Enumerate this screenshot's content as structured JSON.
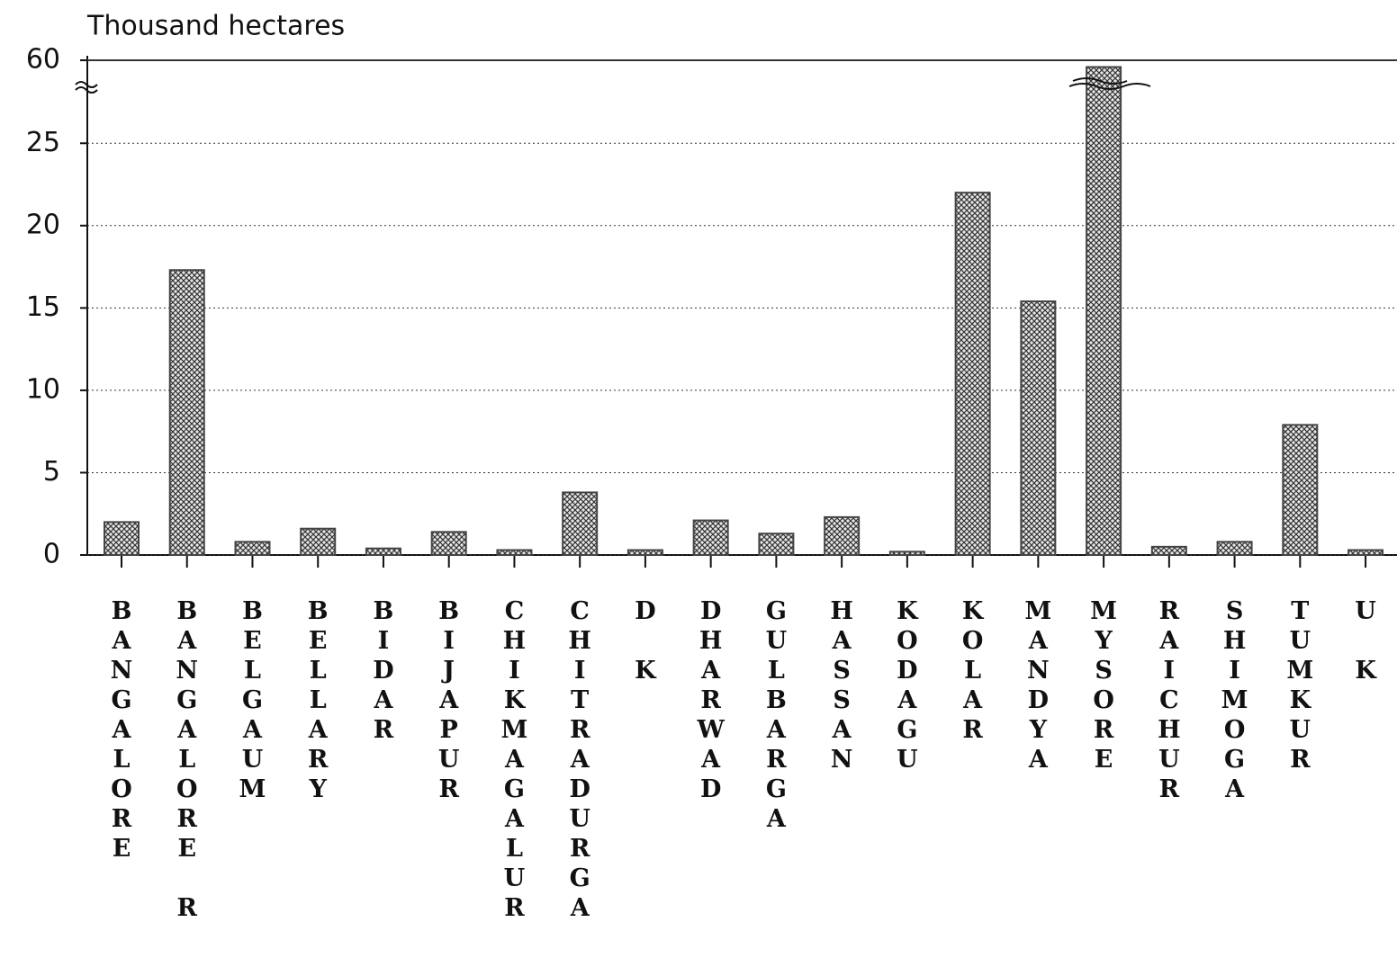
{
  "chart_data": {
    "type": "bar",
    "y_axis_label": "Thousand hectares",
    "categories": [
      "BANGALORE",
      "BANGALORE R",
      "BELGAUM",
      "BELLARY",
      "BIDAR",
      "BIJAPUR",
      "CHIKMAGALUR",
      "CHITRADURGA",
      "D K",
      "DHARWAD",
      "GULBARGA",
      "HASSAN",
      "KODAGU",
      "KOLAR",
      "MANDYA",
      "MYSORE",
      "RAICHUR",
      "SHIMOGA",
      "TUMKUR",
      "U K"
    ],
    "values": [
      2.0,
      17.3,
      0.8,
      1.6,
      0.4,
      1.4,
      0.3,
      3.8,
      0.3,
      2.1,
      1.3,
      2.3,
      0.2,
      22.0,
      15.4,
      59.5,
      0.5,
      0.8,
      7.9,
      0.3
    ],
    "color": "#444444",
    "ylim": [
      0,
      60
    ],
    "yticks": [
      0,
      5,
      10,
      15,
      20,
      25,
      60
    ],
    "axis_break": [
      28.4,
      58
    ],
    "grid": true
  }
}
